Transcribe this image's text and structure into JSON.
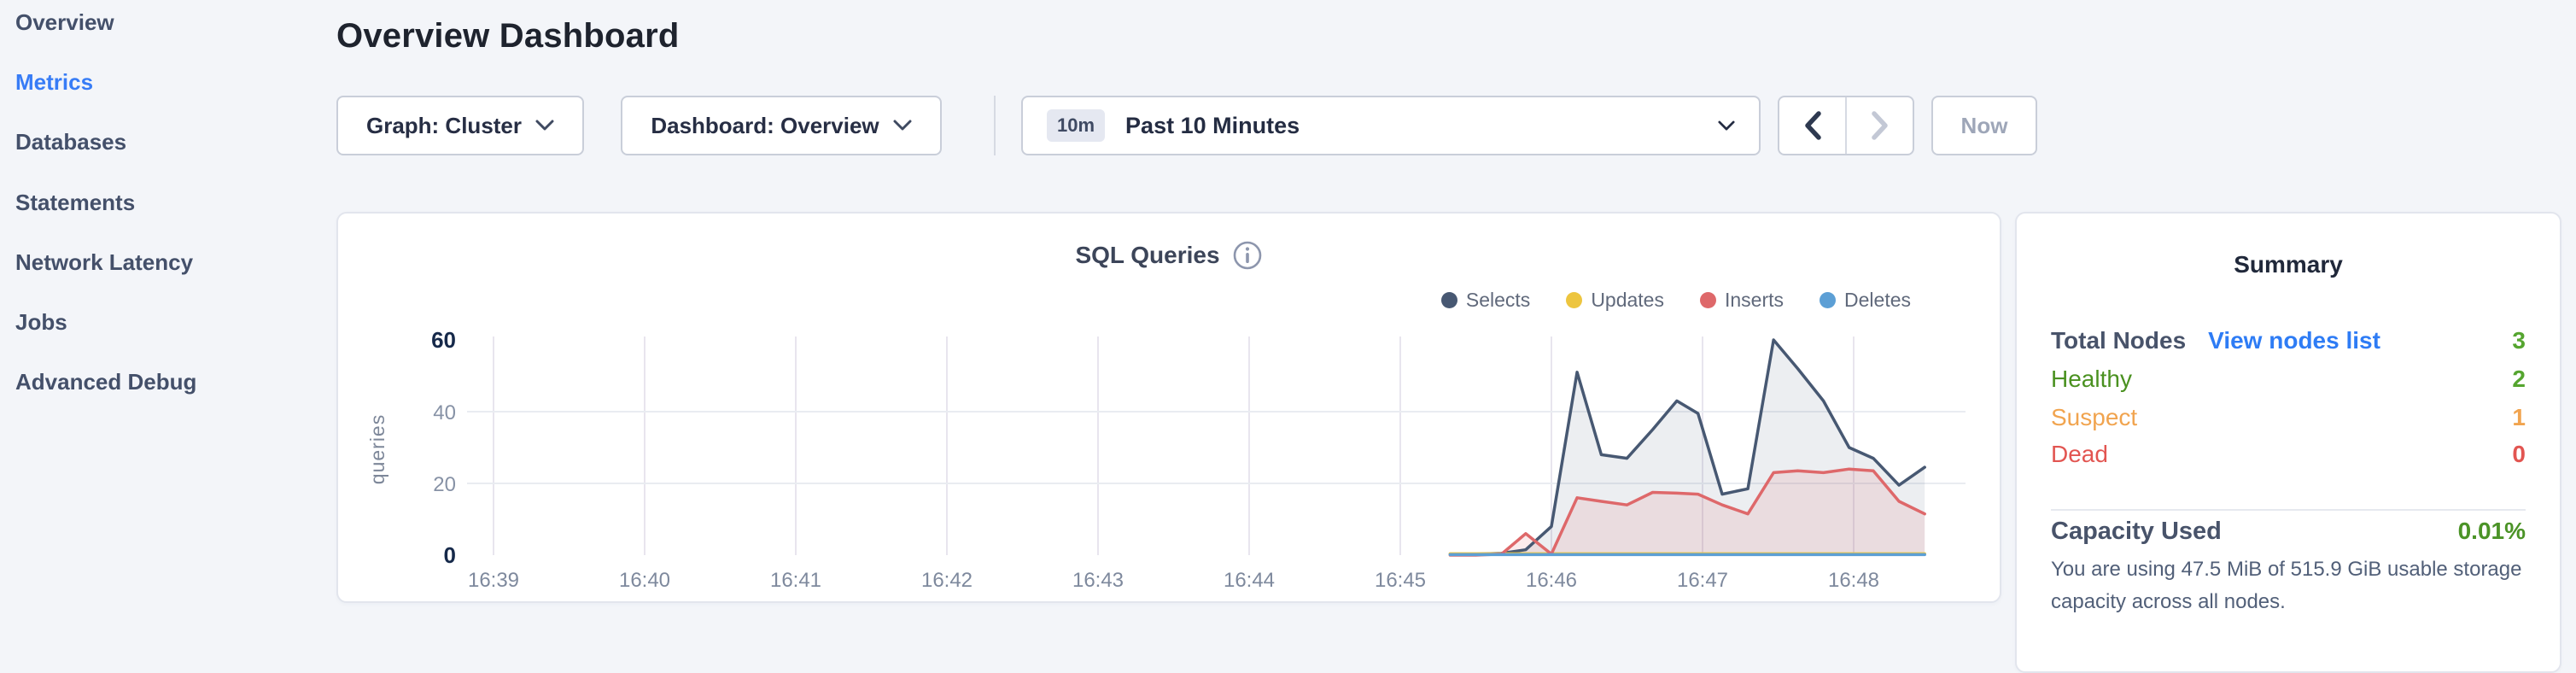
{
  "colors": {
    "accent_blue": "#377cf6",
    "link_blue": "#2e7cf5",
    "page_bg": "#f3f5f9"
  },
  "sidebar": {
    "items": [
      {
        "label": "Overview",
        "active": false
      },
      {
        "label": "Metrics",
        "active": true
      },
      {
        "label": "Databases",
        "active": false
      },
      {
        "label": "Statements",
        "active": false
      },
      {
        "label": "Network Latency",
        "active": false
      },
      {
        "label": "Jobs",
        "active": false
      },
      {
        "label": "Advanced Debug",
        "active": false
      }
    ]
  },
  "header": {
    "title": "Overview Dashboard"
  },
  "controls": {
    "graph_dropdown": {
      "label": "Graph: Cluster"
    },
    "dashboard_dropdown": {
      "label": "Dashboard: Overview"
    },
    "time_selector": {
      "badge": "10m",
      "label": "Past 10 Minutes"
    },
    "now_button": {
      "label": "Now",
      "enabled": false
    }
  },
  "chart_data": {
    "type": "area",
    "title": "SQL Queries",
    "ylabel": "queries",
    "ylim": [
      0,
      60
    ],
    "y_ticks": [
      60,
      40,
      20,
      0
    ],
    "y_gridlines": [
      40,
      20
    ],
    "grid": true,
    "legend_position": "top-right",
    "x_ticks": [
      "16:39",
      "16:40",
      "16:41",
      "16:42",
      "16:43",
      "16:44",
      "16:45",
      "16:46",
      "16:47",
      "16:48"
    ],
    "x_minutes_after_first_tick": [
      6.33,
      6.5,
      6.67,
      6.83,
      7.0,
      7.17,
      7.33,
      7.5,
      7.67,
      7.83,
      7.97,
      8.13,
      8.3,
      8.47,
      8.63,
      8.8,
      8.97,
      9.13,
      9.3,
      9.47
    ],
    "series": [
      {
        "name": "Selects",
        "color": "#475872",
        "fill": "rgba(71,88,114,0.10)",
        "values": [
          0.3,
          0.3,
          0.5,
          1.5,
          8,
          51,
          28,
          27,
          35,
          43,
          39.5,
          17,
          18.5,
          60,
          52,
          43,
          30,
          27,
          19.5,
          24.5
        ]
      },
      {
        "name": "Updates",
        "color": "#edc53f",
        "fill": "none",
        "values": [
          0.4,
          0.4,
          0.4,
          0.4,
          0.4,
          0.4,
          0.4,
          0.4,
          0.4,
          0.4,
          0.4,
          0.4,
          0.4,
          0.4,
          0.4,
          0.4,
          0.4,
          0.4,
          0.4,
          0.4
        ]
      },
      {
        "name": "Inserts",
        "color": "#de686a",
        "fill": "rgba(222,104,106,0.13)",
        "values": [
          0,
          0,
          0.3,
          6,
          0.3,
          16,
          15,
          14,
          17.5,
          17.3,
          17,
          14,
          11.5,
          23,
          23.5,
          23,
          24,
          23.5,
          15,
          11.5
        ]
      },
      {
        "name": "Deletes",
        "color": "#5c9fd5",
        "fill": "none",
        "values": [
          0.15,
          0.15,
          0.15,
          0.15,
          0.15,
          0.15,
          0.15,
          0.15,
          0.15,
          0.15,
          0.15,
          0.15,
          0.15,
          0.15,
          0.15,
          0.15,
          0.15,
          0.15,
          0.15,
          0.15
        ]
      }
    ]
  },
  "summary": {
    "title": "Summary",
    "rows": [
      {
        "label": "Total Nodes",
        "link": "View nodes list",
        "value": "3",
        "label_color": "#48536a",
        "value_color": "#55a52f"
      },
      {
        "label": "Healthy",
        "value": "2",
        "label_color": "#4a9120",
        "value_color": "#55a52f"
      },
      {
        "label": "Suspect",
        "value": "1",
        "label_color": "#f1a44f",
        "value_color": "#f1a44f"
      },
      {
        "label": "Dead",
        "value": "0",
        "label_color": "#e25551",
        "value_color": "#e25551"
      }
    ],
    "capacity": {
      "label": "Capacity Used",
      "value": "0.01%",
      "value_color": "#4b9327",
      "description": "You are using 47.5 MiB of 515.9 GiB usable storage capacity across all nodes."
    }
  }
}
